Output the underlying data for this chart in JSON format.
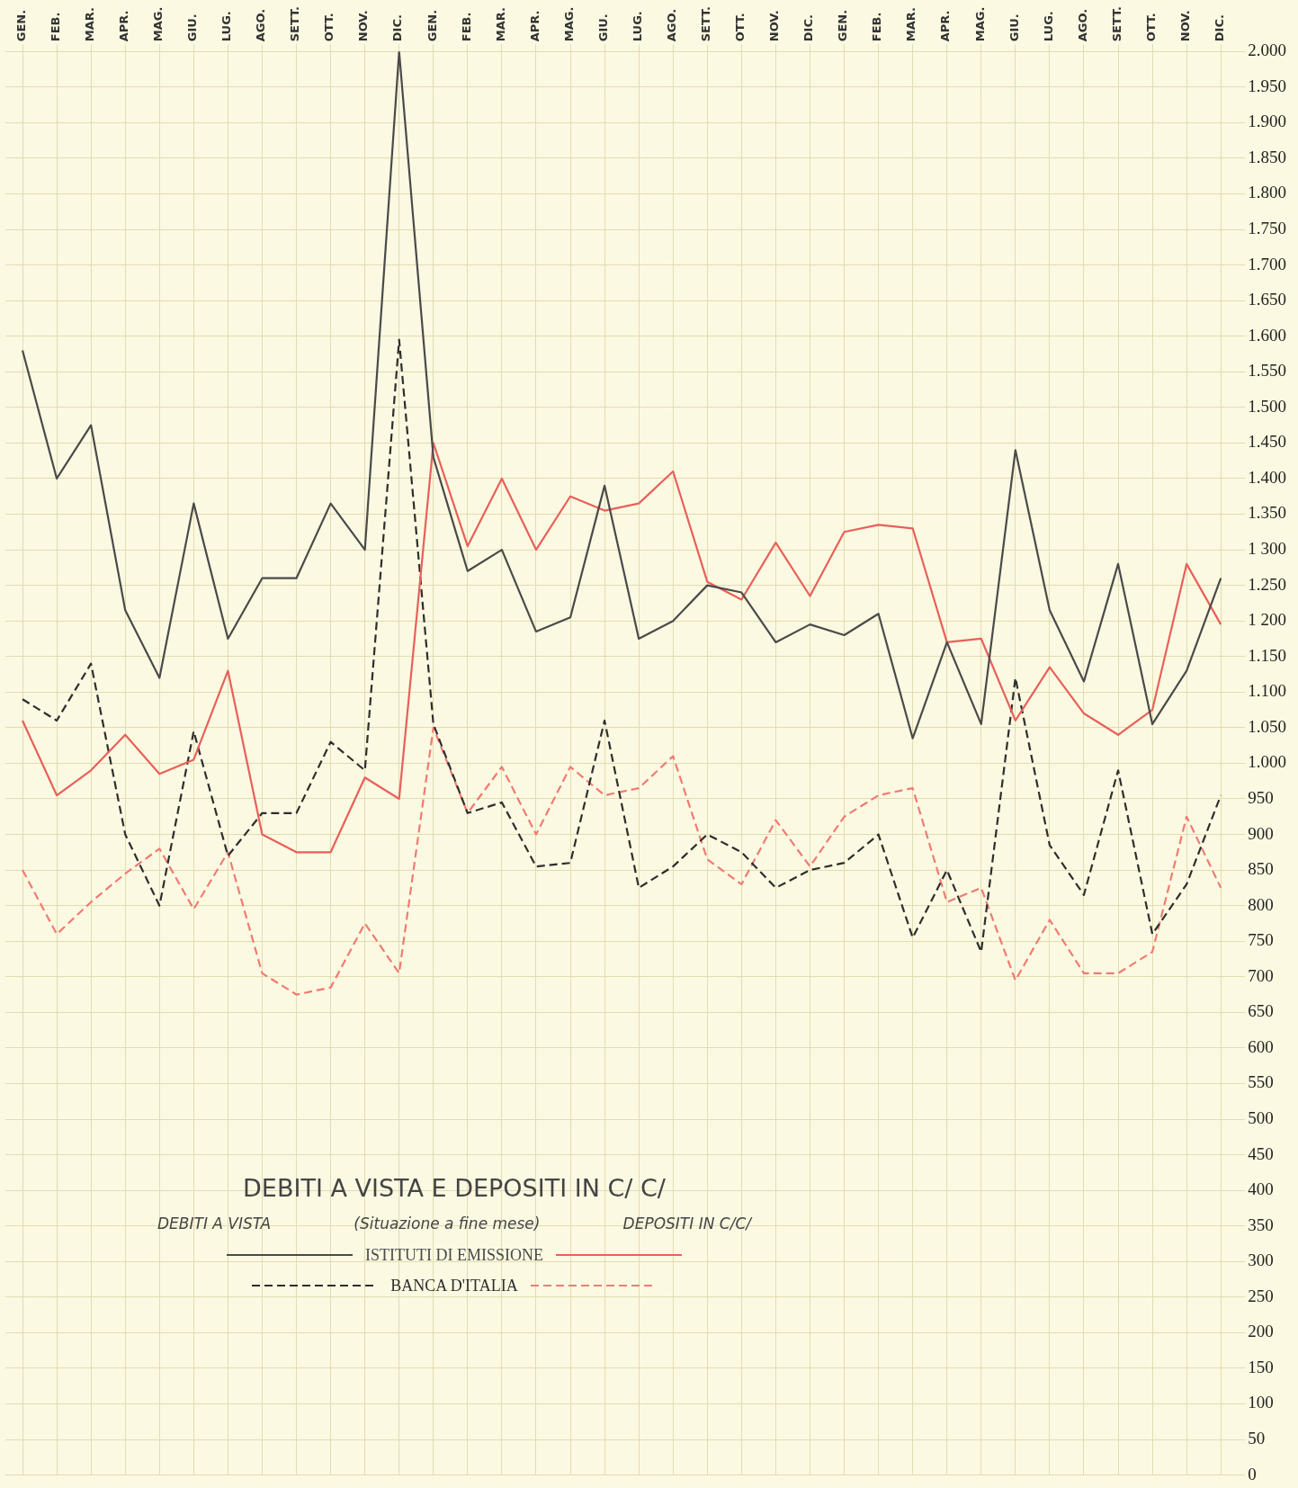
{
  "chart_data": {
    "type": "line",
    "title": "DEBITI A VISTA E DEPOSITI IN C/ C/",
    "annotations": [
      "DEBITI A VISTA",
      "(Situazione a fine mese)",
      "DEPOSITI IN C/C/"
    ],
    "categories": [
      "GEN.",
      "FEB.",
      "MAR.",
      "APR.",
      "MAG.",
      "GIU.",
      "LUG.",
      "AGO.",
      "SETT.",
      "OTT.",
      "NOV.",
      "DIC.",
      "GEN.",
      "FEB.",
      "MAR.",
      "APR.",
      "MAG.",
      "GIU.",
      "LUG.",
      "AGO.",
      "SETT.",
      "OTT.",
      "NOV.",
      "DIC.",
      "GEN.",
      "FEB.",
      "MAR.",
      "APR.",
      "MAG.",
      "GIU.",
      "LUG.",
      "AGO.",
      "SETT.",
      "OTT.",
      "NOV.",
      "DIC."
    ],
    "series": [
      {
        "name": "ISTITUTI DI EMISSIONE",
        "color": "#4a4a4a",
        "line_style": "solid",
        "values": [
          1580,
          1400,
          1475,
          1215,
          1120,
          1365,
          1175,
          1260,
          1260,
          1365,
          1300,
          2000,
          1430,
          1270,
          1300,
          1185,
          1205,
          1390,
          1175,
          1200,
          1250,
          1240,
          1170,
          1195,
          1180,
          1210,
          1035,
          1170,
          1055,
          1440,
          1215,
          1115,
          1280,
          1055,
          1130,
          1260
        ]
      },
      {
        "color": "#e8605a",
        "line_style": "solid",
        "values": [
          1060,
          955,
          990,
          1040,
          985,
          1005,
          1130,
          900,
          875,
          875,
          980,
          950,
          1450,
          1305,
          1400,
          1300,
          1375,
          1355,
          1365,
          1410,
          1255,
          1230,
          1310,
          1235,
          1325,
          1335,
          1330,
          1170,
          1175,
          1060,
          1135,
          1070,
          1040,
          1075,
          1280,
          1195
        ]
      },
      {
        "name": "BANCA D'ITALIA",
        "color": "#2e2e2e",
        "line_style": "dashed",
        "values": [
          1090,
          1060,
          1140,
          900,
          800,
          1045,
          870,
          930,
          930,
          1030,
          990,
          1595,
          1055,
          930,
          945,
          855,
          860,
          1060,
          825,
          855,
          900,
          875,
          825,
          850,
          860,
          900,
          755,
          850,
          735,
          1120,
          885,
          815,
          990,
          760,
          830,
          955
        ]
      },
      {
        "color": "#f07b72",
        "line_style": "dashed",
        "values": [
          850,
          760,
          805,
          845,
          880,
          795,
          875,
          705,
          675,
          685,
          775,
          705,
          1050,
          930,
          995,
          900,
          995,
          955,
          965,
          1010,
          865,
          830,
          920,
          855,
          925,
          955,
          965,
          805,
          825,
          695,
          780,
          705,
          705,
          735,
          925,
          825
        ]
      }
    ],
    "ylim": [
      0,
      2000
    ],
    "yticks": [
      0,
      50,
      100,
      150,
      200,
      250,
      300,
      350,
      400,
      450,
      500,
      550,
      600,
      650,
      700,
      750,
      800,
      850,
      900,
      950,
      {
        "value": 1000,
        "label": "1.000"
      },
      {
        "value": 1050,
        "label": "1.050"
      },
      {
        "value": 1100,
        "label": "1.100"
      },
      {
        "value": 1150,
        "label": "1.150"
      },
      {
        "value": 1200,
        "label": "1 200"
      },
      {
        "value": 1250,
        "label": "1.250"
      },
      {
        "value": 1300,
        "label": "1 300"
      },
      {
        "value": 1350,
        "label": "1.350"
      },
      {
        "value": 1400,
        "label": "1.400"
      },
      {
        "value": 1450,
        "label": "1.450"
      },
      {
        "value": 1500,
        "label": "1.500"
      },
      {
        "value": 1550,
        "label": "1.550"
      },
      {
        "value": 1600,
        "label": "1.600"
      },
      {
        "value": 1650,
        "label": "1.650"
      },
      {
        "value": 1700,
        "label": "1.700"
      },
      {
        "value": 1750,
        "label": "1.750"
      },
      {
        "value": 1800,
        "label": "1.800"
      },
      {
        "value": 1850,
        "label": "1.850"
      },
      {
        "value": 1900,
        "label": "1.900"
      },
      {
        "value": 1950,
        "label": "1.950"
      },
      {
        "value": 2000,
        "label": "2.000"
      }
    ],
    "grid": true,
    "legend": "bottom left"
  }
}
